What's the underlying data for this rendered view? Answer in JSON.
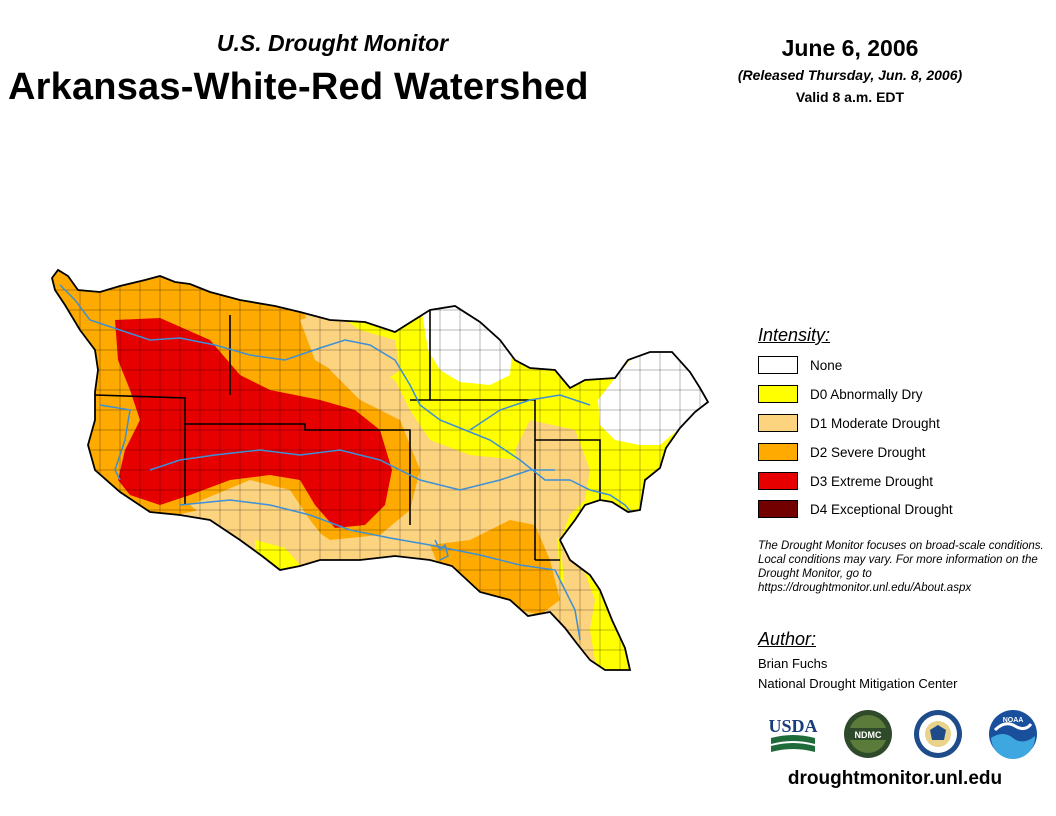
{
  "header": {
    "subtitle": "U.S. Drought Monitor",
    "title": "Arkansas-White-Red Watershed",
    "date": "June 6, 2006",
    "released": "(Released Thursday, Jun. 8, 2006)",
    "valid": "Valid 8 a.m. EDT"
  },
  "legend": {
    "title": "Intensity:",
    "items": [
      {
        "label": "None",
        "color": "#ffffff"
      },
      {
        "label": "D0 Abnormally Dry",
        "color": "#ffff00"
      },
      {
        "label": "D1 Moderate Drought",
        "color": "#fcd37f"
      },
      {
        "label": "D2 Severe Drought",
        "color": "#ffaa00"
      },
      {
        "label": "D3 Extreme Drought",
        "color": "#e60000"
      },
      {
        "label": "D4 Exceptional Drought",
        "color": "#730000"
      }
    ]
  },
  "note": "The Drought Monitor focuses on broad-scale conditions. Local conditions may vary. For more information on the Drought Monitor, go to https://droughtmonitor.unl.edu/About.aspx",
  "author": {
    "title": "Author:",
    "name": "Brian Fuchs",
    "org": "National Drought Mitigation Center"
  },
  "logos": {
    "usda": "USDA",
    "ndmc": "NDMC",
    "noaa": "NOAA"
  },
  "footer": {
    "url": "droughtmonitor.unl.edu"
  },
  "colors": {
    "river": "#3d8fd6",
    "boundary": "#000000"
  }
}
